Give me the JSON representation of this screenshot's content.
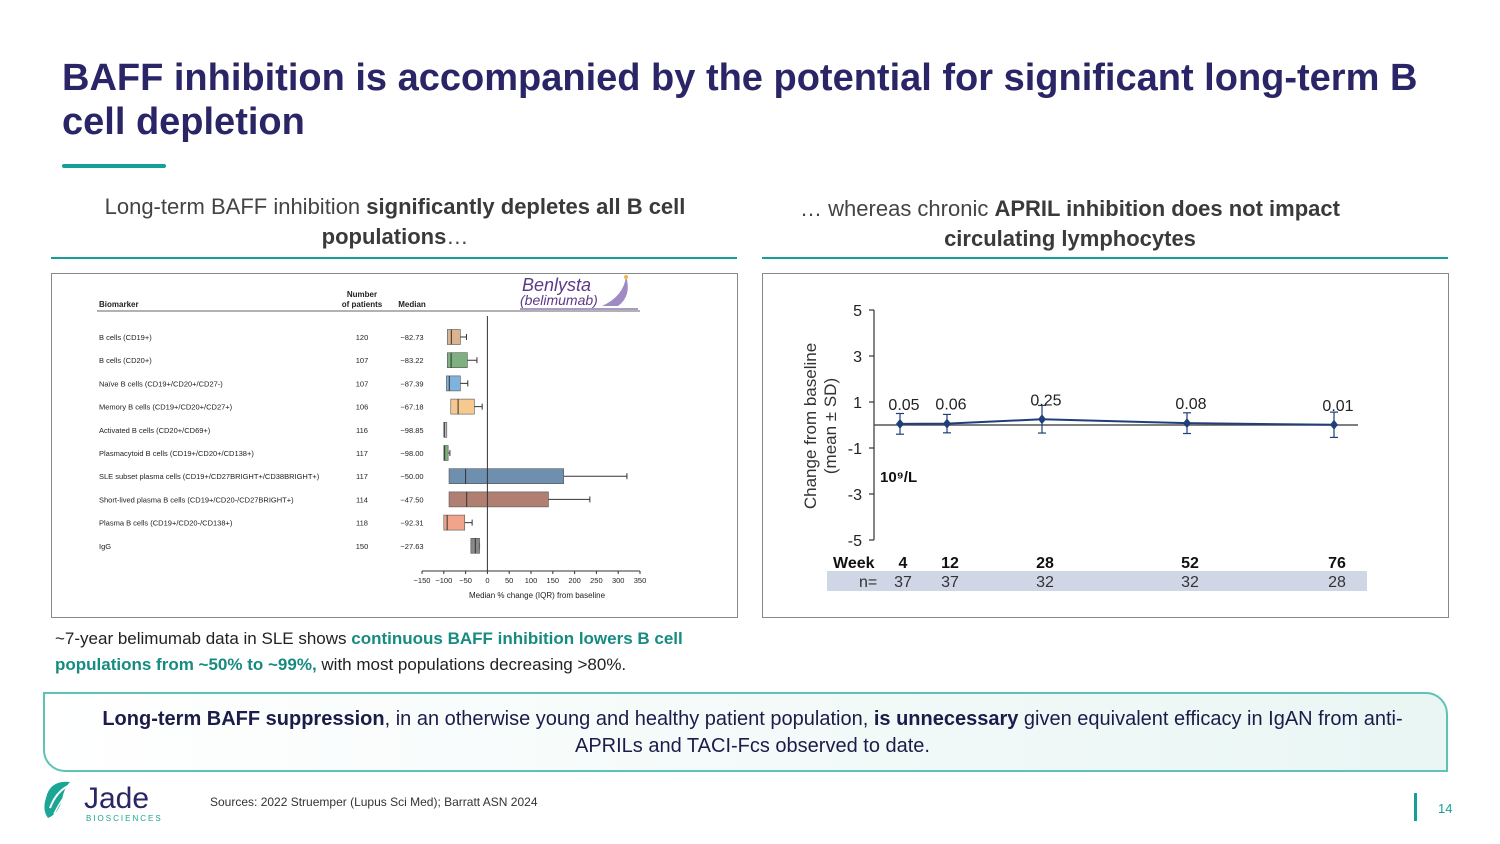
{
  "title": "BAFF inhibition is accompanied by the potential for significant long-term B cell depletion",
  "left_subtitle": {
    "plain": "Long-term BAFF inhibition ",
    "bold": "significantly depletes all B cell populations",
    "suffix": "…"
  },
  "right_subtitle": {
    "plain": "… whereas chronic ",
    "bold": "APRIL inhibition does not impact circulating lymphocytes"
  },
  "note": {
    "plain1": "~7-year belimumab data in SLE shows ",
    "highlight": "continuous BAFF inhibition lowers B cell populations from ~50% to ~99%,",
    "plain2": " with most populations decreasing >80%."
  },
  "callout": {
    "bold1": "Long-term BAFF suppression",
    "plain1": ", in an otherwise young and healthy patient population, ",
    "bold2": "is unnecessary",
    "plain2": " given equivalent efficacy in IgAN from anti-APRILs and TACI-Fcs observed to date."
  },
  "sources": "Sources: 2022 Struemper (Lupus Sci Med); Barratt ASN 2024",
  "page_number": "14",
  "logo": {
    "name": "Jade",
    "tagline": "BIOSCIENCES"
  },
  "colors": {
    "title": "#2a2566",
    "accent": "#14a098",
    "series_line": "#1f3f7a"
  },
  "chart_data": [
    {
      "type": "box",
      "brand": {
        "name": "Benlysta",
        "generic": "(belimumab)"
      },
      "headers": {
        "biomarker": "Biomarker",
        "patients_line1": "Number",
        "patients_line2": "of patients",
        "median": "Median"
      },
      "xlabel": "Median % change (IQR) from baseline",
      "xlim": [
        -150,
        350
      ],
      "xticks": [
        -150,
        -100,
        -50,
        0,
        50,
        100,
        150,
        200,
        250,
        300,
        350
      ],
      "rows": [
        {
          "label": "B cells (CD19+)",
          "n": "120",
          "median_label": "−82.73",
          "median": -82.73,
          "q1": -92,
          "q3": -62,
          "wlo": -92,
          "whi": -48,
          "color": "#d9b48f"
        },
        {
          "label": "B cells (CD20+)",
          "n": "107",
          "median_label": "−83.22",
          "median": -83.22,
          "q1": -92,
          "q3": -46,
          "wlo": -92,
          "whi": -24,
          "color": "#7fb07f"
        },
        {
          "label": "Naïve B cells (CD19+/CD20+/CD27-)",
          "n": "107",
          "median_label": "−87.39",
          "median": -87.39,
          "q1": -94,
          "q3": -62,
          "wlo": -94,
          "whi": -45,
          "color": "#7fb3de"
        },
        {
          "label": "Memory B cells (CD19+/CD20+/CD27+)",
          "n": "106",
          "median_label": "−67.18",
          "median": -67.18,
          "q1": -84,
          "q3": -30,
          "wlo": -84,
          "whi": -12,
          "color": "#f6c98f"
        },
        {
          "label": "Activated B cells (CD20+/CD69+)",
          "n": "116",
          "median_label": "−98.85",
          "median": -98.85,
          "q1": -100,
          "q3": -96,
          "wlo": -100,
          "whi": -96,
          "color": "#bbbbbb"
        },
        {
          "label": "Plasmacytoid B cells (CD19+/CD20+/CD138+)",
          "n": "117",
          "median_label": "−98.00",
          "median": -98.0,
          "q1": -100,
          "q3": -90,
          "wlo": -100,
          "whi": -86,
          "color": "#7fb07f"
        },
        {
          "label": "SLE subset plasma cells (CD19+/CD27BRIGHT+/CD38BRIGHT+)",
          "n": "117",
          "median_label": "−50.00",
          "median": -50.0,
          "q1": -88,
          "q3": 175,
          "wlo": -88,
          "whi": 320,
          "color": "#6f8fae"
        },
        {
          "label": "Short-lived plasma B cells (CD19+/CD20-/CD27BRIGHT+)",
          "n": "114",
          "median_label": "−47.50",
          "median": -47.5,
          "q1": -88,
          "q3": 140,
          "wlo": -88,
          "whi": 235,
          "color": "#b07f72"
        },
        {
          "label": "Plasma B cells (CD19+/CD20-/CD138+)",
          "n": "118",
          "median_label": "−92.31",
          "median": -92.31,
          "q1": -100,
          "q3": -52,
          "wlo": -100,
          "whi": -35,
          "color": "#f2a48a"
        },
        {
          "label": "IgG",
          "n": "150",
          "median_label": "−27.63",
          "median": -27.63,
          "q1": -38,
          "q3": -18,
          "wlo": -38,
          "whi": -18,
          "color": "#888888"
        }
      ]
    },
    {
      "type": "line",
      "ylabel_line1": "Change from baseline",
      "ylabel_line2": "(mean ± SD)",
      "unit_label": "10⁹/L",
      "ylim": [
        -5,
        5
      ],
      "yticks": [
        5,
        3,
        1,
        -1,
        -3,
        -5
      ],
      "x_label": "Week",
      "n_label": "n=",
      "weeks": [
        4,
        12,
        28,
        52,
        76
      ],
      "values": [
        0.05,
        0.06,
        0.25,
        0.08,
        0.01
      ],
      "value_labels": [
        "0.05",
        "0.06",
        "0.25",
        "0.08",
        "0.01"
      ],
      "sd": [
        0.45,
        0.4,
        0.6,
        0.45,
        0.55
      ],
      "n": [
        "37",
        "37",
        "32",
        "32",
        "28"
      ]
    }
  ]
}
